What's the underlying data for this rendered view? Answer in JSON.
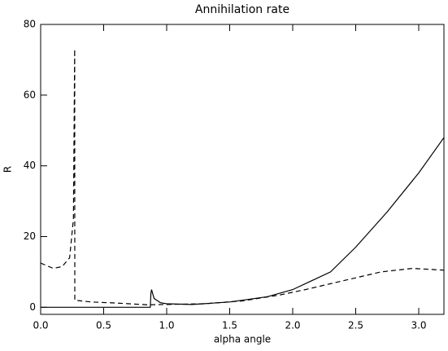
{
  "chart_data": {
    "type": "line",
    "title": "Annihilation rate",
    "x_label": "alpha angle",
    "y_label": "R",
    "xlim": [
      0,
      3.2
    ],
    "ylim": [
      -2,
      80
    ],
    "xticks": [
      {
        "value": 0,
        "label": "0.0"
      },
      0.5,
      {
        "value": 1,
        "label": "1.0"
      },
      1.5,
      {
        "value": 2,
        "label": "2.0"
      },
      2.5,
      {
        "value": 3,
        "label": "3.0"
      }
    ],
    "yticks": [
      0,
      20,
      40,
      60,
      80
    ],
    "series": [
      {
        "style": "solid",
        "color": "#000000",
        "x": [
          0,
          0.5,
          0.87,
          0.875,
          0.88,
          0.9,
          0.95,
          1.0,
          1.2,
          1.5,
          1.8,
          2.0,
          2.3,
          2.5,
          2.75,
          3.0,
          3.2
        ],
        "values": [
          0,
          0,
          0,
          4,
          5,
          2.5,
          1.3,
          1.0,
          0.8,
          1.5,
          3,
          5,
          10,
          17,
          27,
          38,
          48
        ]
      },
      {
        "style": "dashed",
        "color": "#000000",
        "x": [
          0,
          0.1,
          0.17,
          0.23,
          0.26,
          0.27,
          0.271,
          0.4,
          0.6,
          0.85,
          1.0,
          1.3,
          1.6,
          1.9,
          2.1,
          2.4,
          2.7,
          2.95,
          3.2
        ],
        "values": [
          12.5,
          11,
          11.5,
          14,
          25,
          73,
          2,
          1.5,
          1.2,
          0.7,
          0.8,
          1.0,
          1.8,
          3.5,
          5,
          7.5,
          10,
          11,
          10.5
        ]
      }
    ]
  }
}
